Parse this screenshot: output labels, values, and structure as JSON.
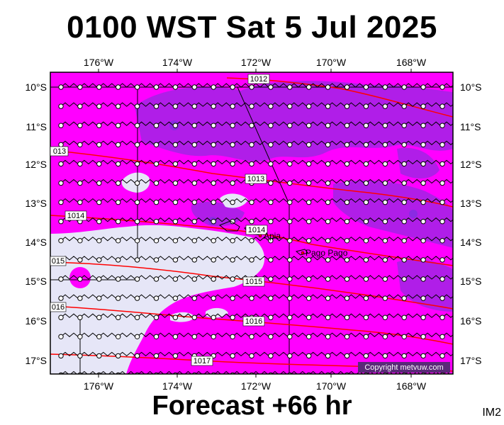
{
  "header": {
    "title": "0100 WST Sat 5 Jul 2025"
  },
  "footer": {
    "forecast": "Forecast +66 hr",
    "region_code": "IM2"
  },
  "map": {
    "lon_labels": [
      "176°W",
      "174°W",
      "172°W",
      "170°W",
      "168°W"
    ],
    "lat_labels": [
      "10°S",
      "11°S",
      "12°S",
      "13°S",
      "14°S",
      "15°S",
      "16°S",
      "17°S"
    ],
    "isobars": [
      {
        "label": "1012"
      },
      {
        "label": "013"
      },
      {
        "label": "1013"
      },
      {
        "label": "1014"
      },
      {
        "label": "1014"
      },
      {
        "label": "015"
      },
      {
        "label": "1015"
      },
      {
        "label": "016"
      },
      {
        "label": "1016"
      },
      {
        "label": "1017"
      }
    ],
    "places": [
      {
        "name": "Apia"
      },
      {
        "name": "Pago Pago"
      }
    ],
    "copyright": "Copyright metvuw.com",
    "colors": {
      "magenta": "#ff00ff",
      "violet": "#b01ee8",
      "deep_violet": "#8a2be2",
      "pale": "#e6e6f7",
      "isobar": "#ff0000"
    }
  }
}
